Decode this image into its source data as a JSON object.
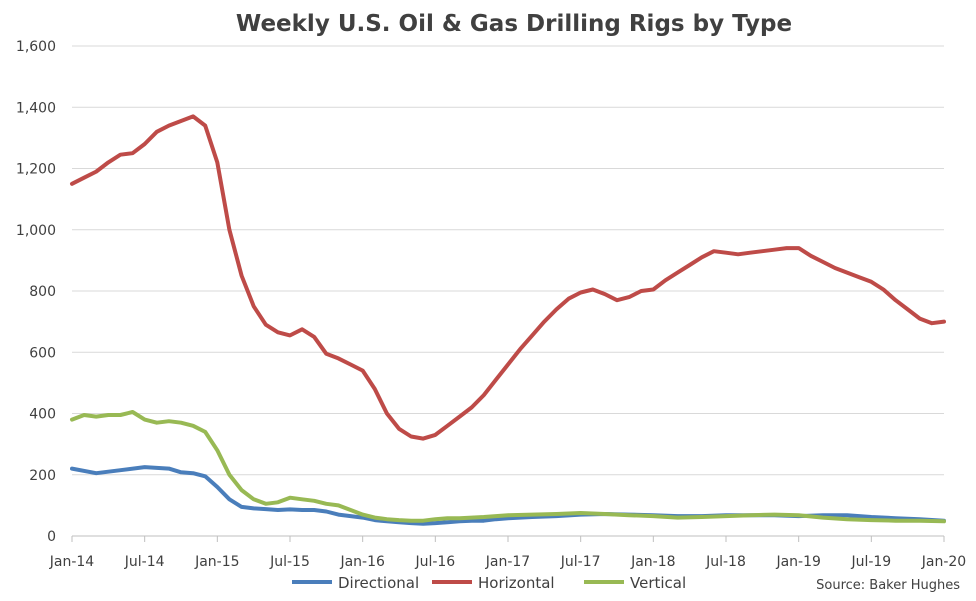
{
  "chart_data": {
    "type": "line",
    "title": "Weekly U.S. Oil & Gas Drilling Rigs by Type",
    "source": "Source: Baker Hughes",
    "ylim": [
      0,
      1600
    ],
    "y_ticks": [
      "0",
      "200",
      "400",
      "600",
      "800",
      "1,000",
      "1,200",
      "1,400",
      "1,600"
    ],
    "x_ticks": [
      "Jan-14",
      "Jul-14",
      "Jan-15",
      "Jul-15",
      "Jan-16",
      "Jul-16",
      "Jan-17",
      "Jul-17",
      "Jan-18",
      "Jul-18",
      "Jan-19",
      "Jul-19",
      "Jan-20"
    ],
    "grid": true,
    "legend_position": "bottom",
    "series": [
      {
        "name": "Directional",
        "color": "#4a7ebb",
        "points": [
          [
            "Jan-14",
            220
          ],
          [
            "Mar-14",
            205
          ],
          [
            "May-14",
            215
          ],
          [
            "Jul-14",
            225
          ],
          [
            "Sep-14",
            220
          ],
          [
            "Oct-14",
            208
          ],
          [
            "Nov-14",
            205
          ],
          [
            "Dec-14",
            195
          ],
          [
            "Jan-15",
            160
          ],
          [
            "Feb-15",
            120
          ],
          [
            "Mar-15",
            95
          ],
          [
            "Apr-15",
            90
          ],
          [
            "May-15",
            88
          ],
          [
            "Jun-15",
            85
          ],
          [
            "Jul-15",
            87
          ],
          [
            "Aug-15",
            85
          ],
          [
            "Sep-15",
            85
          ],
          [
            "Oct-15",
            80
          ],
          [
            "Nov-15",
            70
          ],
          [
            "Dec-15",
            65
          ],
          [
            "Jan-16",
            60
          ],
          [
            "Feb-16",
            52
          ],
          [
            "Mar-16",
            48
          ],
          [
            "Apr-16",
            45
          ],
          [
            "May-16",
            42
          ],
          [
            "Jun-16",
            40
          ],
          [
            "Jul-16",
            42
          ],
          [
            "Aug-16",
            45
          ],
          [
            "Sep-16",
            48
          ],
          [
            "Oct-16",
            50
          ],
          [
            "Nov-16",
            50
          ],
          [
            "Dec-16",
            55
          ],
          [
            "Jan-17",
            58
          ],
          [
            "Mar-17",
            62
          ],
          [
            "May-17",
            65
          ],
          [
            "Jul-17",
            70
          ],
          [
            "Sep-17",
            72
          ],
          [
            "Nov-17",
            70
          ],
          [
            "Jan-18",
            68
          ],
          [
            "Mar-18",
            65
          ],
          [
            "May-18",
            65
          ],
          [
            "Jul-18",
            68
          ],
          [
            "Sep-18",
            68
          ],
          [
            "Nov-18",
            68
          ],
          [
            "Jan-19",
            65
          ],
          [
            "Mar-19",
            68
          ],
          [
            "May-19",
            68
          ],
          [
            "Jul-19",
            62
          ],
          [
            "Sep-19",
            58
          ],
          [
            "Nov-19",
            55
          ],
          [
            "Jan-20",
            50
          ]
        ]
      },
      {
        "name": "Horizontal",
        "color": "#be4b48",
        "points": [
          [
            "Jan-14",
            1150
          ],
          [
            "Feb-14",
            1170
          ],
          [
            "Mar-14",
            1190
          ],
          [
            "Apr-14",
            1220
          ],
          [
            "May-14",
            1245
          ],
          [
            "Jun-14",
            1250
          ],
          [
            "Jul-14",
            1280
          ],
          [
            "Aug-14",
            1320
          ],
          [
            "Sep-14",
            1340
          ],
          [
            "Oct-14",
            1355
          ],
          [
            "Nov-14",
            1370
          ],
          [
            "Dec-14",
            1340
          ],
          [
            "Jan-15",
            1220
          ],
          [
            "Feb-15",
            1000
          ],
          [
            "Mar-15",
            850
          ],
          [
            "Apr-15",
            750
          ],
          [
            "May-15",
            690
          ],
          [
            "Jun-15",
            665
          ],
          [
            "Jul-15",
            655
          ],
          [
            "Aug-15",
            675
          ],
          [
            "Sep-15",
            650
          ],
          [
            "Oct-15",
            595
          ],
          [
            "Nov-15",
            580
          ],
          [
            "Dec-15",
            560
          ],
          [
            "Jan-16",
            540
          ],
          [
            "Feb-16",
            480
          ],
          [
            "Mar-16",
            400
          ],
          [
            "Apr-16",
            350
          ],
          [
            "May-16",
            325
          ],
          [
            "Jun-16",
            318
          ],
          [
            "Jul-16",
            330
          ],
          [
            "Aug-16",
            360
          ],
          [
            "Sep-16",
            390
          ],
          [
            "Oct-16",
            420
          ],
          [
            "Nov-16",
            460
          ],
          [
            "Dec-16",
            510
          ],
          [
            "Jan-17",
            560
          ],
          [
            "Feb-17",
            610
          ],
          [
            "Mar-17",
            655
          ],
          [
            "Apr-17",
            700
          ],
          [
            "May-17",
            740
          ],
          [
            "Jun-17",
            775
          ],
          [
            "Jul-17",
            795
          ],
          [
            "Aug-17",
            805
          ],
          [
            "Sep-17",
            790
          ],
          [
            "Oct-17",
            770
          ],
          [
            "Nov-17",
            780
          ],
          [
            "Dec-17",
            800
          ],
          [
            "Jan-18",
            805
          ],
          [
            "Feb-18",
            835
          ],
          [
            "Mar-18",
            860
          ],
          [
            "Apr-18",
            885
          ],
          [
            "May-18",
            910
          ],
          [
            "Jun-18",
            930
          ],
          [
            "Jul-18",
            925
          ],
          [
            "Aug-18",
            920
          ],
          [
            "Sep-18",
            925
          ],
          [
            "Oct-18",
            930
          ],
          [
            "Nov-18",
            935
          ],
          [
            "Dec-18",
            940
          ],
          [
            "Jan-19",
            940
          ],
          [
            "Feb-19",
            915
          ],
          [
            "Mar-19",
            895
          ],
          [
            "Apr-19",
            875
          ],
          [
            "May-19",
            860
          ],
          [
            "Jun-19",
            845
          ],
          [
            "Jul-19",
            830
          ],
          [
            "Aug-19",
            805
          ],
          [
            "Sep-19",
            770
          ],
          [
            "Oct-19",
            740
          ],
          [
            "Nov-19",
            710
          ],
          [
            "Dec-19",
            695
          ],
          [
            "Jan-20",
            700
          ]
        ]
      },
      {
        "name": "Vertical",
        "color": "#98b954",
        "points": [
          [
            "Jan-14",
            380
          ],
          [
            "Feb-14",
            395
          ],
          [
            "Mar-14",
            390
          ],
          [
            "Apr-14",
            395
          ],
          [
            "May-14",
            395
          ],
          [
            "Jun-14",
            405
          ],
          [
            "Jul-14",
            380
          ],
          [
            "Aug-14",
            370
          ],
          [
            "Sep-14",
            375
          ],
          [
            "Oct-14",
            370
          ],
          [
            "Nov-14",
            360
          ],
          [
            "Dec-14",
            340
          ],
          [
            "Jan-15",
            280
          ],
          [
            "Feb-15",
            200
          ],
          [
            "Mar-15",
            150
          ],
          [
            "Apr-15",
            120
          ],
          [
            "May-15",
            105
          ],
          [
            "Jun-15",
            110
          ],
          [
            "Jul-15",
            125
          ],
          [
            "Aug-15",
            120
          ],
          [
            "Sep-15",
            115
          ],
          [
            "Oct-15",
            105
          ],
          [
            "Nov-15",
            100
          ],
          [
            "Dec-15",
            85
          ],
          [
            "Jan-16",
            70
          ],
          [
            "Feb-16",
            60
          ],
          [
            "Mar-16",
            55
          ],
          [
            "Apr-16",
            52
          ],
          [
            "May-16",
            50
          ],
          [
            "Jun-16",
            50
          ],
          [
            "Jul-16",
            55
          ],
          [
            "Aug-16",
            58
          ],
          [
            "Sep-16",
            58
          ],
          [
            "Oct-16",
            60
          ],
          [
            "Nov-16",
            62
          ],
          [
            "Dec-16",
            65
          ],
          [
            "Jan-17",
            68
          ],
          [
            "Mar-17",
            70
          ],
          [
            "May-17",
            72
          ],
          [
            "Jul-17",
            75
          ],
          [
            "Sep-17",
            72
          ],
          [
            "Nov-17",
            68
          ],
          [
            "Jan-18",
            65
          ],
          [
            "Mar-18",
            60
          ],
          [
            "May-18",
            62
          ],
          [
            "Jul-18",
            65
          ],
          [
            "Sep-18",
            68
          ],
          [
            "Nov-18",
            70
          ],
          [
            "Jan-19",
            68
          ],
          [
            "Mar-19",
            60
          ],
          [
            "May-19",
            55
          ],
          [
            "Jul-19",
            52
          ],
          [
            "Sep-19",
            50
          ],
          [
            "Nov-19",
            50
          ],
          [
            "Jan-20",
            48
          ]
        ]
      }
    ]
  }
}
